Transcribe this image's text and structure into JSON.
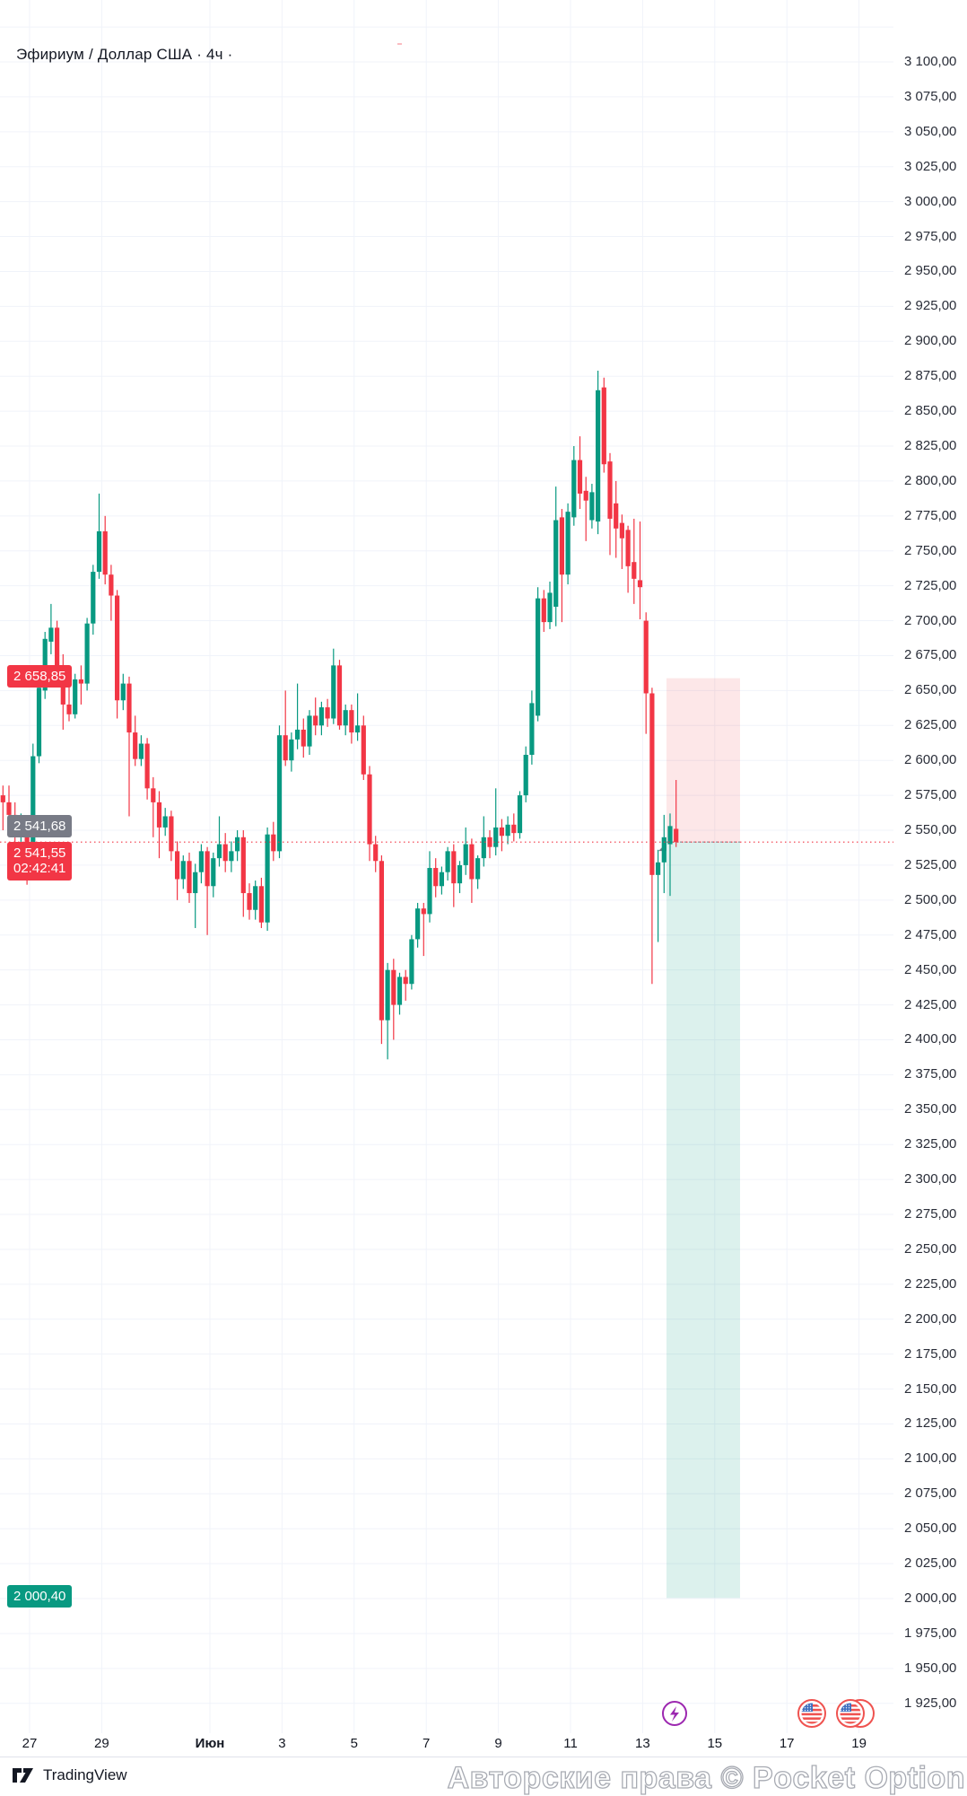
{
  "header": {
    "symbol_title": "Эфириум / Доллар США · 4ч ·"
  },
  "chart_data": {
    "type": "candlestick",
    "title": "Эфириум / Доллар США · 4ч",
    "price_axis": {
      "min": 1925,
      "max": 3100,
      "step": 25,
      "format": "ru"
    },
    "time_axis_labels": [
      {
        "text": "27",
        "day": 0,
        "bold": false
      },
      {
        "text": "29",
        "day": 2,
        "bold": false
      },
      {
        "text": "Июн",
        "day": 5,
        "bold": true
      },
      {
        "text": "3",
        "day": 7,
        "bold": false
      },
      {
        "text": "5",
        "day": 9,
        "bold": false
      },
      {
        "text": "7",
        "day": 11,
        "bold": false
      },
      {
        "text": "9",
        "day": 13,
        "bold": false
      },
      {
        "text": "11",
        "day": 15,
        "bold": false
      },
      {
        "text": "13",
        "day": 17,
        "bold": false
      },
      {
        "text": "15",
        "day": 19,
        "bold": false
      },
      {
        "text": "17",
        "day": 21,
        "bold": false
      },
      {
        "text": "19",
        "day": 23,
        "bold": false
      }
    ],
    "colors": {
      "up": "#089981",
      "down": "#f23645",
      "grid": "#f0f3fa",
      "entry_line": "#f23645",
      "long_zone_fill": "rgba(8,153,129,0.14)",
      "stop_zone_fill": "rgba(242,54,69,0.12)"
    },
    "position_tool": {
      "direction": "long",
      "entry": 2541.55,
      "target": 2000.4,
      "stop": 2658.85
    },
    "candles": [
      [
        2575,
        2582,
        2550,
        2570
      ],
      [
        2570,
        2582,
        2556,
        2561
      ],
      [
        2561,
        2570,
        2536,
        2548
      ],
      [
        2548,
        2562,
        2540,
        2557
      ],
      [
        2557,
        2560,
        2511,
        2538
      ],
      [
        2538,
        2612,
        2530,
        2603
      ],
      [
        2603,
        2660,
        2598,
        2652
      ],
      [
        2650,
        2692,
        2644,
        2687
      ],
      [
        2685,
        2712,
        2676,
        2695
      ],
      [
        2695,
        2700,
        2660,
        2668
      ],
      [
        2668,
        2676,
        2622,
        2640
      ],
      [
        2640,
        2655,
        2628,
        2633
      ],
      [
        2633,
        2662,
        2630,
        2658
      ],
      [
        2658,
        2668,
        2640,
        2655
      ],
      [
        2655,
        2702,
        2650,
        2698
      ],
      [
        2698,
        2740,
        2690,
        2735
      ],
      [
        2735,
        2791,
        2730,
        2764
      ],
      [
        2764,
        2775,
        2726,
        2733
      ],
      [
        2733,
        2740,
        2700,
        2718
      ],
      [
        2718,
        2722,
        2630,
        2643
      ],
      [
        2643,
        2662,
        2636,
        2655
      ],
      [
        2655,
        2660,
        2560,
        2620
      ],
      [
        2620,
        2632,
        2596,
        2601
      ],
      [
        2601,
        2618,
        2596,
        2612
      ],
      [
        2612,
        2616,
        2572,
        2580
      ],
      [
        2580,
        2588,
        2545,
        2570
      ],
      [
        2570,
        2578,
        2530,
        2552
      ],
      [
        2552,
        2566,
        2546,
        2560
      ],
      [
        2560,
        2564,
        2528,
        2535
      ],
      [
        2535,
        2542,
        2500,
        2515
      ],
      [
        2515,
        2532,
        2508,
        2528
      ],
      [
        2528,
        2534,
        2498,
        2505
      ],
      [
        2505,
        2526,
        2480,
        2520
      ],
      [
        2520,
        2540,
        2512,
        2535
      ],
      [
        2535,
        2538,
        2475,
        2510
      ],
      [
        2510,
        2534,
        2502,
        2530
      ],
      [
        2530,
        2560,
        2524,
        2540
      ],
      [
        2540,
        2548,
        2520,
        2528
      ],
      [
        2528,
        2542,
        2520,
        2535
      ],
      [
        2535,
        2550,
        2528,
        2545
      ],
      [
        2545,
        2550,
        2488,
        2505
      ],
      [
        2505,
        2512,
        2486,
        2493
      ],
      [
        2493,
        2514,
        2486,
        2510
      ],
      [
        2510,
        2516,
        2480,
        2484
      ],
      [
        2484,
        2552,
        2478,
        2547
      ],
      [
        2547,
        2556,
        2528,
        2535
      ],
      [
        2535,
        2625,
        2530,
        2618
      ],
      [
        2618,
        2650,
        2596,
        2600
      ],
      [
        2600,
        2620,
        2592,
        2615
      ],
      [
        2615,
        2655,
        2608,
        2622
      ],
      [
        2622,
        2630,
        2602,
        2610
      ],
      [
        2610,
        2636,
        2604,
        2632
      ],
      [
        2632,
        2645,
        2618,
        2625
      ],
      [
        2625,
        2642,
        2618,
        2638
      ],
      [
        2638,
        2644,
        2624,
        2630
      ],
      [
        2630,
        2680,
        2626,
        2668
      ],
      [
        2668,
        2672,
        2622,
        2625
      ],
      [
        2625,
        2640,
        2618,
        2636
      ],
      [
        2636,
        2640,
        2612,
        2620
      ],
      [
        2620,
        2648,
        2614,
        2625
      ],
      [
        2625,
        2632,
        2586,
        2590
      ],
      [
        2590,
        2596,
        2528,
        2540
      ],
      [
        2540,
        2546,
        2520,
        2528
      ],
      [
        2528,
        2532,
        2397,
        2414
      ],
      [
        2414,
        2455,
        2386,
        2450
      ],
      [
        2450,
        2458,
        2400,
        2425
      ],
      [
        2425,
        2448,
        2418,
        2445
      ],
      [
        2445,
        2450,
        2428,
        2440
      ],
      [
        2440,
        2475,
        2436,
        2472
      ],
      [
        2472,
        2498,
        2466,
        2494
      ],
      [
        2494,
        2498,
        2460,
        2490
      ],
      [
        2490,
        2535,
        2484,
        2523
      ],
      [
        2523,
        2530,
        2502,
        2510
      ],
      [
        2510,
        2524,
        2504,
        2520
      ],
      [
        2520,
        2538,
        2514,
        2535
      ],
      [
        2535,
        2540,
        2495,
        2512
      ],
      [
        2512,
        2528,
        2505,
        2525
      ],
      [
        2525,
        2552,
        2518,
        2540
      ],
      [
        2540,
        2544,
        2498,
        2515
      ],
      [
        2515,
        2532,
        2508,
        2530
      ],
      [
        2530,
        2560,
        2524,
        2545
      ],
      [
        2545,
        2550,
        2530,
        2538
      ],
      [
        2538,
        2580,
        2532,
        2552
      ],
      [
        2552,
        2558,
        2535,
        2546
      ],
      [
        2546,
        2560,
        2540,
        2554
      ],
      [
        2554,
        2562,
        2542,
        2548
      ],
      [
        2548,
        2578,
        2544,
        2575
      ],
      [
        2575,
        2610,
        2570,
        2604
      ],
      [
        2604,
        2650,
        2597,
        2641
      ],
      [
        2632,
        2724,
        2628,
        2716
      ],
      [
        2716,
        2722,
        2692,
        2699
      ],
      [
        2699,
        2728,
        2694,
        2720
      ],
      [
        2710,
        2796,
        2696,
        2772
      ],
      [
        2774,
        2780,
        2699,
        2733
      ],
      [
        2733,
        2784,
        2726,
        2778
      ],
      [
        2774,
        2825,
        2768,
        2815
      ],
      [
        2815,
        2832,
        2780,
        2791
      ],
      [
        2793,
        2803,
        2757,
        2786
      ],
      [
        2772,
        2798,
        2766,
        2792
      ],
      [
        2771,
        2879,
        2762,
        2865
      ],
      [
        2867,
        2874,
        2806,
        2812
      ],
      [
        2814,
        2820,
        2747,
        2773
      ],
      [
        2784,
        2800,
        2745,
        2766
      ],
      [
        2770,
        2776,
        2737,
        2759
      ],
      [
        2765,
        2768,
        2720,
        2739
      ],
      [
        2742,
        2773,
        2712,
        2730
      ],
      [
        2729,
        2771,
        2701,
        2724
      ],
      [
        2700,
        2706,
        2619,
        2648
      ],
      [
        2648,
        2652,
        2440,
        2518
      ],
      [
        2518,
        2536,
        2470,
        2527
      ],
      [
        2527,
        2561,
        2505,
        2545
      ],
      [
        2540,
        2562,
        2503,
        2553
      ],
      [
        2551,
        2586,
        2538,
        2541.55
      ]
    ]
  },
  "price_labels": {
    "stop": "2 658,85",
    "last_gray": "2 541,68",
    "last": "2 541,55",
    "countdown": "02:42:41",
    "target": "2 000,40"
  },
  "events": {
    "lightning_color": "#9c27b0",
    "flag_ring_color": "#ef5350"
  },
  "footer": {
    "tradingview": "TradingView",
    "watermark": "Авторские права © Pocket Option"
  }
}
